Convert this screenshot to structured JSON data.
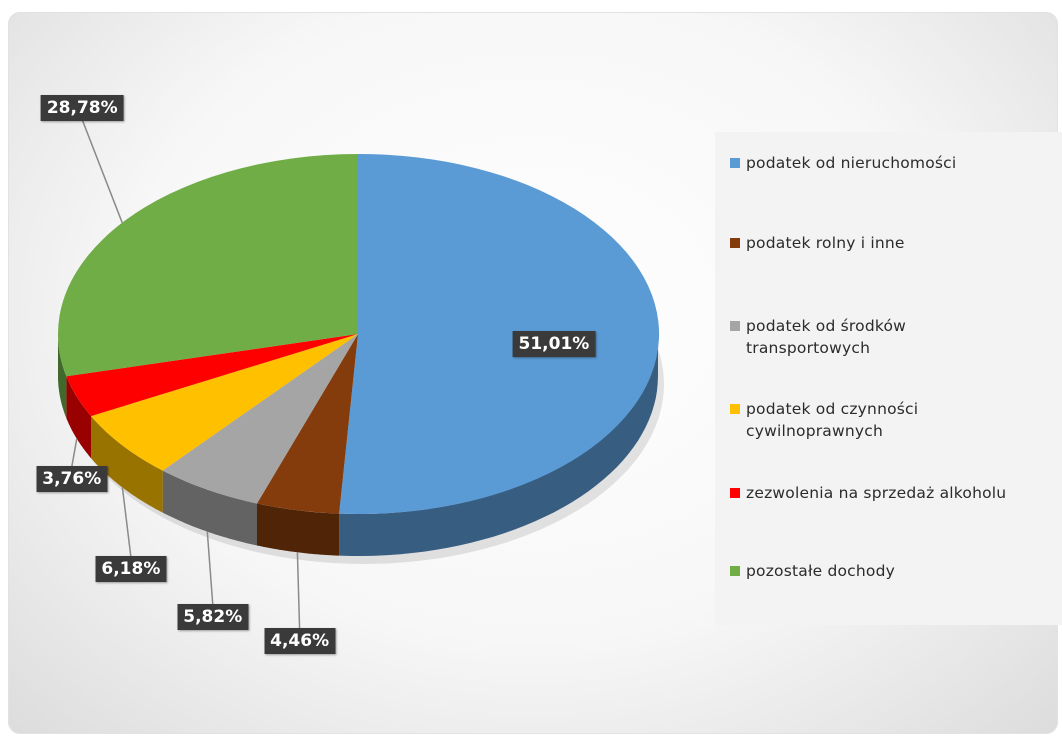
{
  "chart_data": {
    "type": "pie",
    "title": "",
    "slices": [
      {
        "label": "podatek od nieruchomości",
        "value": 51.01,
        "value_label": "51,01%",
        "color": "#5b9bd5"
      },
      {
        "label": "podatek rolny i inne",
        "value": 4.46,
        "value_label": "4,46%",
        "color": "#843c0c"
      },
      {
        "label": "podatek od środków transportowych",
        "value": 5.82,
        "value_label": "5,82%",
        "color": "#a5a5a5"
      },
      {
        "label": "podatek od czynności cywilnoprawnych",
        "value": 6.18,
        "value_label": "6,18%",
        "color": "#ffc000"
      },
      {
        "label": "zezwolenia na sprzedaż alkoholu",
        "value": 3.76,
        "value_label": "3,76%",
        "color": "#ff0000"
      },
      {
        "label": "pozostałe dochody",
        "value": 28.78,
        "value_label": "28,78%",
        "color": "#70ad47"
      }
    ],
    "legend_position": "right",
    "style": "3d-pie"
  }
}
